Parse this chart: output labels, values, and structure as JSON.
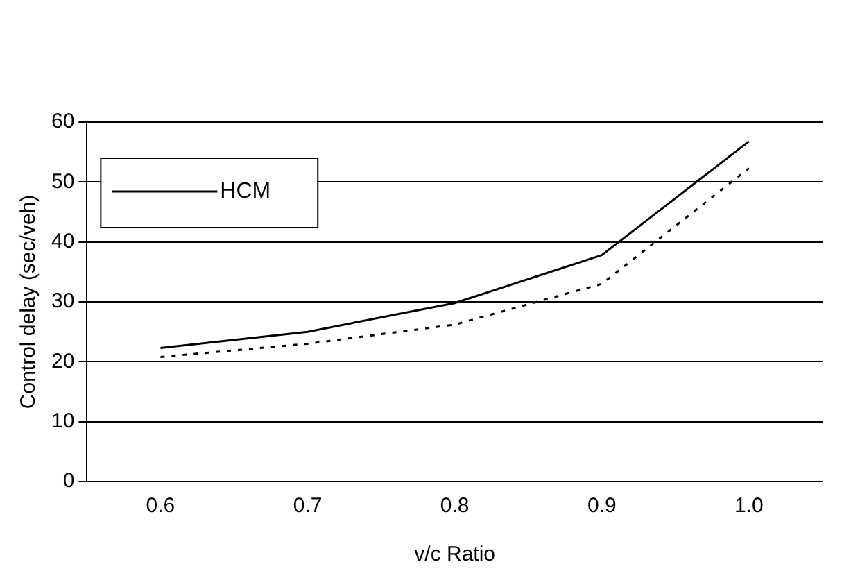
{
  "chart_data": {
    "type": "line",
    "xlabel": "v/c Ratio",
    "ylabel": "Control delay (sec/veh)",
    "categories": [
      "0.6",
      "0.7",
      "0.8",
      "0.9",
      "1.0"
    ],
    "series": [
      {
        "name": "HCM",
        "color": "#000000",
        "line_style": "solid",
        "values": [
          22.3,
          25,
          29.8,
          37.8,
          56.8
        ]
      },
      {
        "color": "#000000",
        "line_style": "dotted",
        "values": [
          20.8,
          23,
          26.2,
          33,
          52.3
        ]
      }
    ],
    "ylim": [
      0,
      60
    ],
    "yticks": [
      0,
      10,
      20,
      30,
      40,
      50,
      60
    ],
    "grid": "y",
    "legend": "top left",
    "marker": "none"
  }
}
